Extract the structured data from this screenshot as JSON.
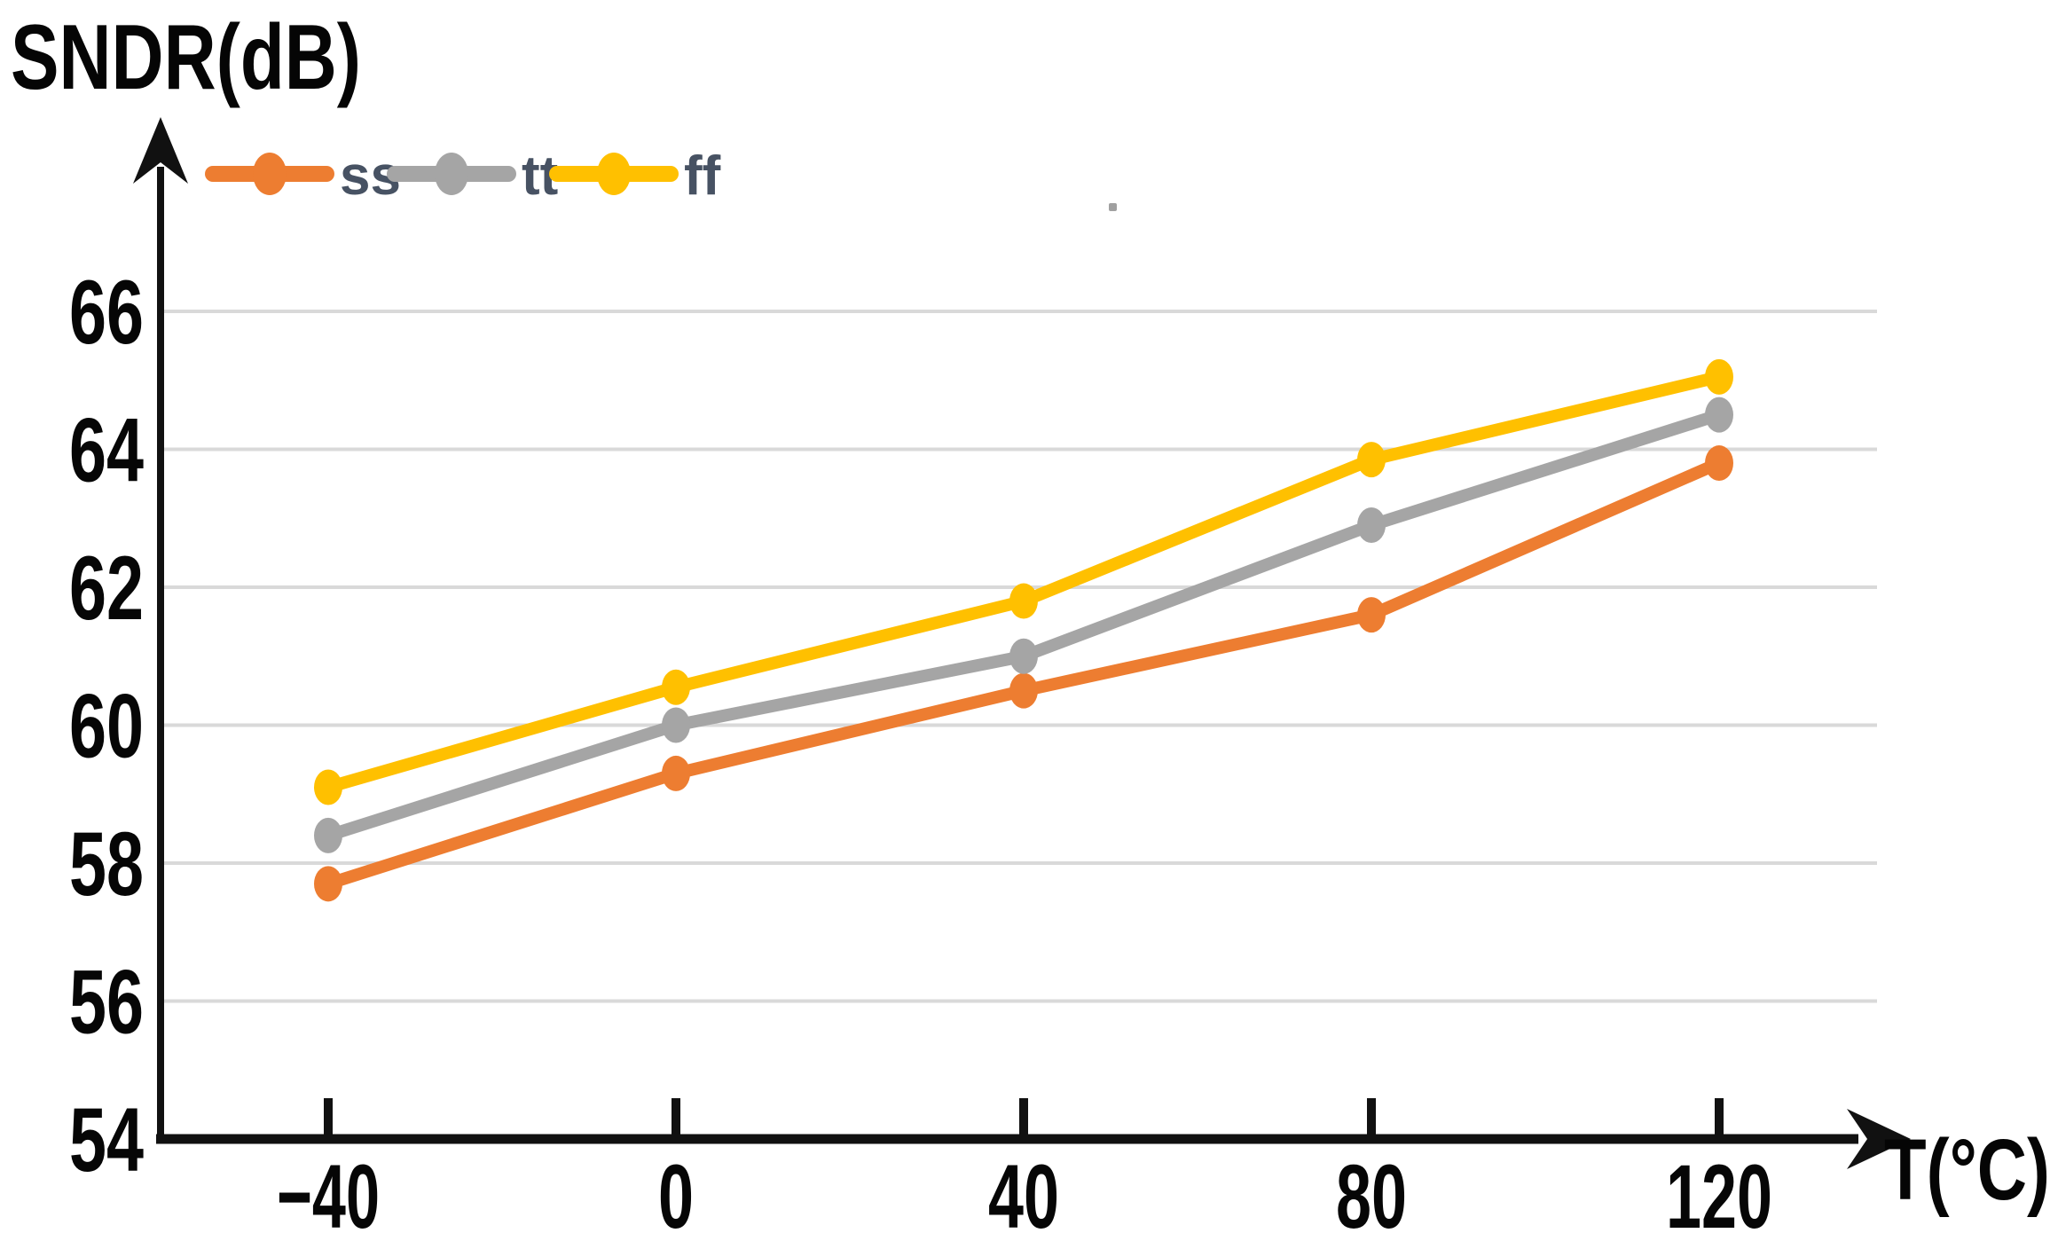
{
  "title": "SNDR(dB)",
  "x_axis_label": "T(°C)",
  "colors": {
    "background": "#ffffff",
    "axis": "#111111",
    "gridline": "#d9d9d9",
    "tick_label": "#060606",
    "legend_text": "#475263",
    "series_ss": "#ED7D31",
    "series_tt": "#A5A5A5",
    "series_ff": "#FFC000"
  },
  "legend": [
    {
      "label": "ss",
      "color": "#ED7D31"
    },
    {
      "label": "tt",
      "color": "#A5A5A5"
    },
    {
      "label": "ff",
      "color": "#FFC000"
    }
  ],
  "chart_data": {
    "type": "line",
    "title": "SNDR(dB)",
    "xlabel": "T(°C)",
    "ylabel": "SNDR(dB)",
    "x": [
      -40,
      0,
      40,
      80,
      120
    ],
    "x_tick_labels": [
      "−40",
      "0",
      "40",
      "80",
      "120"
    ],
    "y_ticks": [
      54,
      56,
      58,
      60,
      62,
      64,
      66
    ],
    "ylim": [
      54,
      68.5
    ],
    "xlim": [
      -40,
      140
    ],
    "grid": "horizontal",
    "legend_position": "top-left",
    "marker": "circle",
    "series": [
      {
        "name": "ss",
        "color": "#ED7D31",
        "values": [
          57.7,
          59.3,
          60.5,
          61.6,
          63.8
        ]
      },
      {
        "name": "tt",
        "color": "#A5A5A5",
        "values": [
          58.4,
          60.0,
          61.0,
          62.9,
          64.5
        ]
      },
      {
        "name": "ff",
        "color": "#FFC000",
        "values": [
          59.1,
          60.55,
          61.8,
          63.85,
          65.05
        ]
      }
    ]
  }
}
